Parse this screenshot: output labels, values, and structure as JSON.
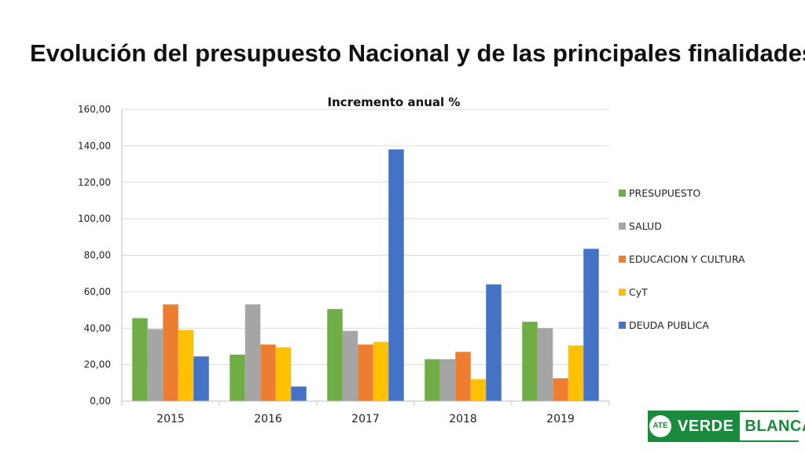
{
  "slide": {
    "title": "Evolución del presupuesto Nacional y de las principales finalidades"
  },
  "logo": {
    "badge_text": "ATE",
    "word_left": "VERDE",
    "word_right": "BLANCA",
    "colors": {
      "green": "#1a8a3c",
      "white": "#ffffff"
    }
  },
  "chart_data": {
    "type": "bar",
    "title": "Incremento anual %",
    "xlabel": "",
    "ylabel": "",
    "categories": [
      "2015",
      "2016",
      "2017",
      "2018",
      "2019"
    ],
    "ylim": [
      0,
      160
    ],
    "yticks": [
      "0,00",
      "20,00",
      "40,00",
      "60,00",
      "80,00",
      "100,00",
      "120,00",
      "140,00",
      "160,00"
    ],
    "grid": true,
    "legend_position": "right",
    "series": [
      {
        "name": "PRESUPUESTO",
        "color": "#70ad47",
        "values": [
          45.5,
          25.5,
          50.5,
          23.0,
          43.5
        ]
      },
      {
        "name": "SALUD",
        "color": "#a5a5a5",
        "values": [
          39.5,
          53.0,
          38.5,
          23.0,
          40.0
        ]
      },
      {
        "name": "EDUCACION Y CULTURA",
        "color": "#ed7d31",
        "values": [
          53.0,
          31.0,
          31.0,
          27.0,
          12.5
        ]
      },
      {
        "name": "CyT",
        "color": "#ffc000",
        "values": [
          39.0,
          29.5,
          32.5,
          12.0,
          30.5
        ]
      },
      {
        "name": "DEUDA PUBLICA",
        "color": "#4472c4",
        "values": [
          24.5,
          8.0,
          138.0,
          64.0,
          83.5
        ]
      }
    ]
  }
}
